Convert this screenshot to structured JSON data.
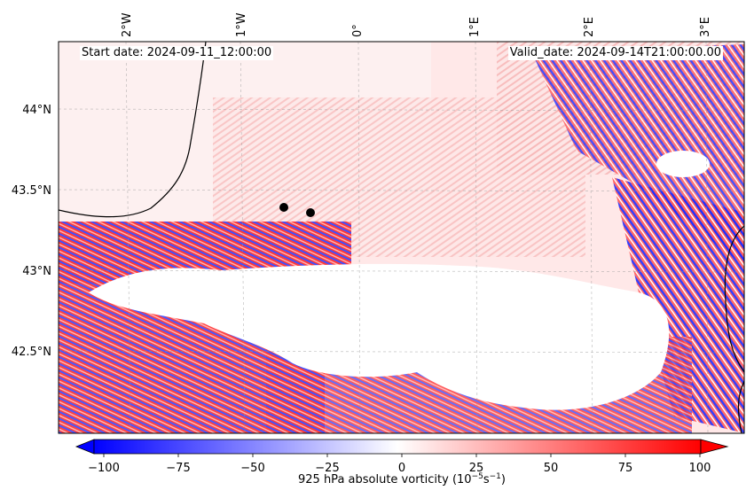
{
  "map": {
    "start_date": "Start date: 2024-09-11_12:00:00",
    "valid_date": "Valid_date: 2024-09-14T21:00:00.00",
    "lon_labels": [
      "2°W",
      "1°W",
      "0°",
      "1°E",
      "2°E",
      "3°E"
    ],
    "lat_labels": [
      "44°N",
      "43.5°N",
      "43°N",
      "42.5°N"
    ],
    "points_count": 2
  },
  "colorbar": {
    "ticks": [
      "−100",
      "−75",
      "−50",
      "−25",
      "0",
      "25",
      "50",
      "75",
      "100"
    ],
    "label_prefix": "925 hPa absolute vorticity (10",
    "label_exp1": "−5",
    "label_mid": "s",
    "label_exp2": "−1",
    "label_suffix": ")",
    "colors": {
      "negative": "#0000ff",
      "zero": "#ffffff",
      "positive": "#ff0000"
    },
    "range": [
      -100,
      100
    ]
  }
}
